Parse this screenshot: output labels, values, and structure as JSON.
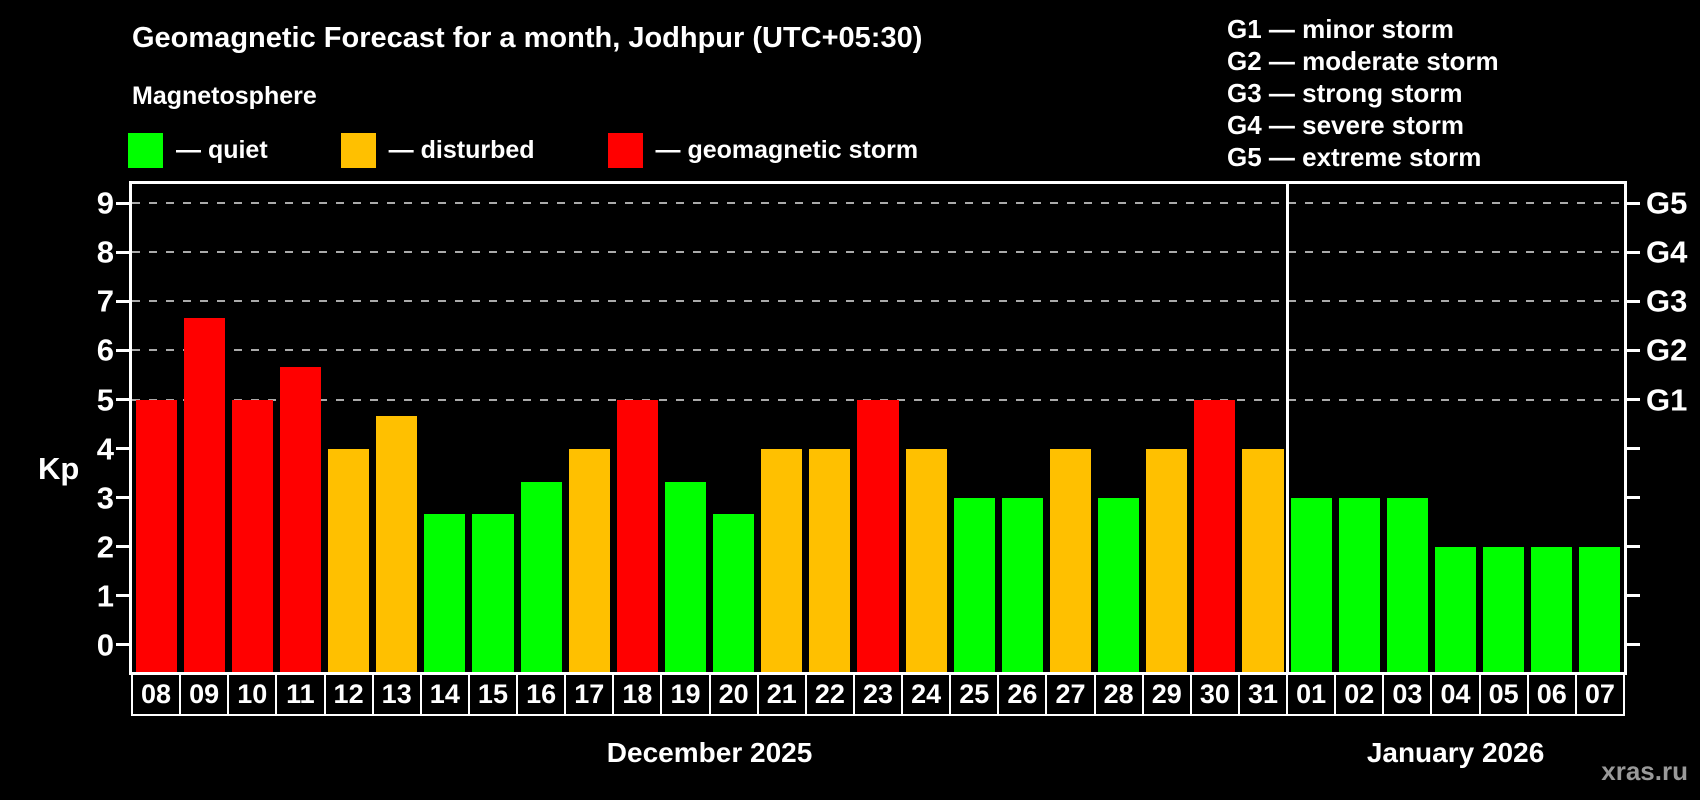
{
  "title": "Geomagnetic Forecast for a month, Jodhpur (UTC+05:30)",
  "subtitle": "Magnetosphere",
  "watermark": "xras.ru",
  "colors": {
    "background": "#000000",
    "axis": "#ffffff",
    "grid": "#aaaaaa",
    "watermark_text": "#999999",
    "quiet": "#00ff00",
    "disturbed": "#ffc000",
    "storm": "#ff0000"
  },
  "magnetosphere_legend": [
    {
      "status": "quiet",
      "label": "— quiet"
    },
    {
      "status": "disturbed",
      "label": "— disturbed"
    },
    {
      "status": "storm",
      "label": "— geomagnetic storm"
    }
  ],
  "storm_scale_legend": [
    "G1 — minor storm",
    "G2 — moderate storm",
    "G3 — strong storm",
    "G4 — severe storm",
    "G5 — extreme storm"
  ],
  "chart_data": {
    "type": "bar",
    "ylabel": "Kp",
    "ylim": [
      -0.55,
      9.39
    ],
    "yticks": [
      0,
      1,
      2,
      3,
      4,
      5,
      6,
      7,
      8,
      9
    ],
    "legend_position": "top-left",
    "grid": "dashed horizontal lines at Kp 5-9",
    "storm_levels": [
      {
        "kp": 5,
        "label": "G1"
      },
      {
        "kp": 6,
        "label": "G2"
      },
      {
        "kp": 7,
        "label": "G3"
      },
      {
        "kp": 8,
        "label": "G4"
      },
      {
        "kp": 9,
        "label": "G5"
      }
    ],
    "months": [
      {
        "label": "December 2025",
        "days": 24
      },
      {
        "label": "January 2026",
        "days": 7
      }
    ],
    "bars": [
      {
        "day": "08",
        "kp": 5,
        "status": "storm"
      },
      {
        "day": "09",
        "kp": 6.67,
        "status": "storm"
      },
      {
        "day": "10",
        "kp": 5,
        "status": "storm"
      },
      {
        "day": "11",
        "kp": 5.67,
        "status": "storm"
      },
      {
        "day": "12",
        "kp": 4,
        "status": "disturbed"
      },
      {
        "day": "13",
        "kp": 4.67,
        "status": "disturbed"
      },
      {
        "day": "14",
        "kp": 2.67,
        "status": "quiet"
      },
      {
        "day": "15",
        "kp": 2.67,
        "status": "quiet"
      },
      {
        "day": "16",
        "kp": 3.33,
        "status": "quiet"
      },
      {
        "day": "17",
        "kp": 4,
        "status": "disturbed"
      },
      {
        "day": "18",
        "kp": 5,
        "status": "storm"
      },
      {
        "day": "19",
        "kp": 3.33,
        "status": "quiet"
      },
      {
        "day": "20",
        "kp": 2.67,
        "status": "quiet"
      },
      {
        "day": "21",
        "kp": 4,
        "status": "disturbed"
      },
      {
        "day": "22",
        "kp": 4,
        "status": "disturbed"
      },
      {
        "day": "23",
        "kp": 5,
        "status": "storm"
      },
      {
        "day": "24",
        "kp": 4,
        "status": "disturbed"
      },
      {
        "day": "25",
        "kp": 3,
        "status": "quiet"
      },
      {
        "day": "26",
        "kp": 3,
        "status": "quiet"
      },
      {
        "day": "27",
        "kp": 4,
        "status": "disturbed"
      },
      {
        "day": "28",
        "kp": 3,
        "status": "quiet"
      },
      {
        "day": "29",
        "kp": 4,
        "status": "disturbed"
      },
      {
        "day": "30",
        "kp": 5,
        "status": "storm"
      },
      {
        "day": "31",
        "kp": 4,
        "status": "disturbed"
      },
      {
        "day": "01",
        "kp": 3,
        "status": "quiet"
      },
      {
        "day": "02",
        "kp": 3,
        "status": "quiet"
      },
      {
        "day": "03",
        "kp": 3,
        "status": "quiet"
      },
      {
        "day": "04",
        "kp": 2,
        "status": "quiet"
      },
      {
        "day": "05",
        "kp": 2,
        "status": "quiet"
      },
      {
        "day": "06",
        "kp": 2,
        "status": "quiet"
      },
      {
        "day": "07",
        "kp": 2,
        "status": "quiet"
      }
    ]
  }
}
